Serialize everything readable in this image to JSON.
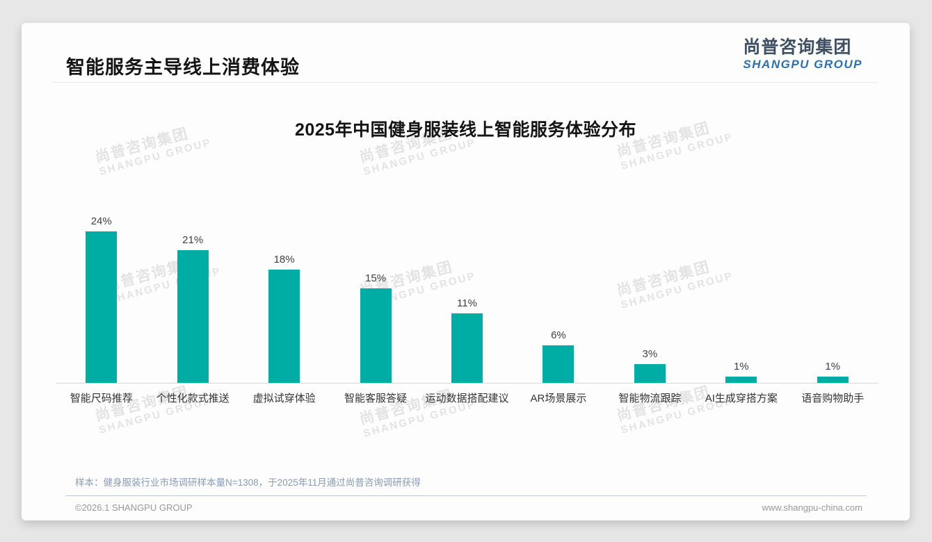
{
  "page": {
    "title": "智能服务主导线上消费体验",
    "logo": {
      "cn": "尚普咨询集团",
      "en": "SHANGPU GROUP"
    },
    "note": "样本：健身服装行业市场调研样本量N=1308，于2025年11月通过尚普咨询调研获得",
    "footer": {
      "copyright": "©2026.1 SHANGPU GROUP",
      "website": "www.shangpu-china.com"
    },
    "watermark": {
      "line1": "尚普咨询集团",
      "line2": "SHANGPU GROUP"
    }
  },
  "chart_data": {
    "type": "bar",
    "title": "2025年中国健身服装线上智能服务体验分布",
    "categories": [
      "智能尺码推荐",
      "个性化款式推送",
      "虚拟试穿体验",
      "智能客服答疑",
      "运动数据搭配建议",
      "AR场景展示",
      "智能物流跟踪",
      "AI生成穿搭方案",
      "语音购物助手"
    ],
    "values": [
      24,
      21,
      18,
      15,
      11,
      6,
      3,
      1,
      1
    ],
    "value_labels": [
      "24%",
      "21%",
      "18%",
      "15%",
      "11%",
      "6%",
      "3%",
      "1%",
      "1%"
    ],
    "unit": "%",
    "bar_color": "#00ada4",
    "axis_line_color": "#d8d8d8",
    "ylim": [
      0,
      25
    ],
    "grid": false,
    "legend": false,
    "data_labels": "top",
    "xlabel": "",
    "ylabel": ""
  }
}
